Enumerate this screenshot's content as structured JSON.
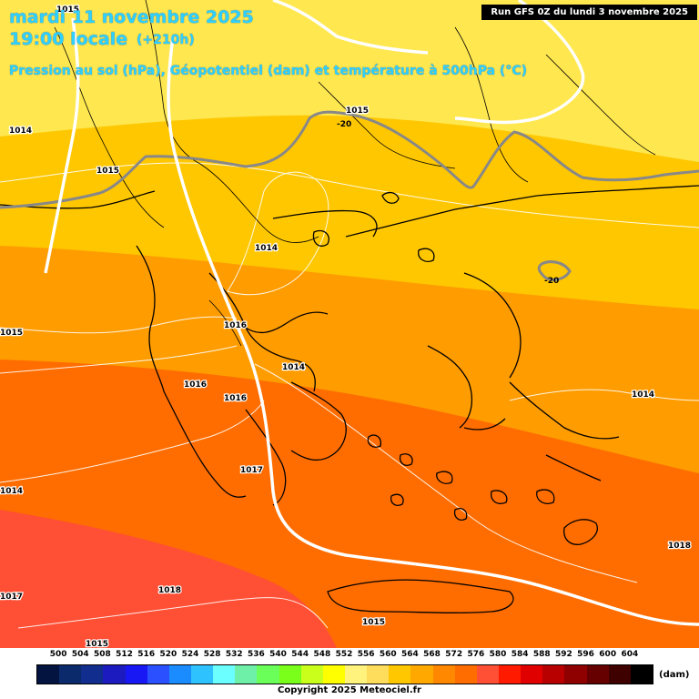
{
  "header": {
    "date": "mardi 11 novembre 2025",
    "time": "19:00 locale",
    "step": "(+210h)",
    "variables": "Pression au sol (hPa), Géopotentiel (dam) et température à 500hPa (°C)",
    "run": "Run GFS 0Z du lundi 3 novembre 2025"
  },
  "map": {
    "geopotential_bands_dam": [
      {
        "band": "564-568",
        "color": "#ffe74f"
      },
      {
        "band": "568-572",
        "color": "#ffc700"
      },
      {
        "band": "572-576",
        "color": "#ff9c00"
      },
      {
        "band": "576-580",
        "color": "#ff6d00"
      },
      {
        "band": "580-584",
        "color": "#ff4f35"
      }
    ],
    "pressure_labels": [
      "1015",
      "1014",
      "1015",
      "1015",
      "1014",
      "1015",
      "1016",
      "1016",
      "1014",
      "1016",
      "1014",
      "1017",
      "1014",
      "1018",
      "1017",
      "1018",
      "1015",
      "1015"
    ],
    "temperature_labels": [
      "-20",
      "-20"
    ]
  },
  "legend": {
    "ticks": [
      "500",
      "504",
      "508",
      "512",
      "516",
      "520",
      "524",
      "528",
      "532",
      "536",
      "540",
      "544",
      "548",
      "552",
      "556",
      "560",
      "564",
      "568",
      "572",
      "576",
      "580",
      "584",
      "588",
      "592",
      "596",
      "600",
      "604"
    ],
    "colors": [
      "#041440",
      "#0b2a6b",
      "#112d8e",
      "#1b1bbf",
      "#1818f5",
      "#2a50ff",
      "#1a8cff",
      "#2ec2ff",
      "#6bffff",
      "#6ff0a8",
      "#6bff5a",
      "#7aff1a",
      "#c9ff1a",
      "#ffff00",
      "#fff37d",
      "#ffdd5c",
      "#ffc700",
      "#ffa800",
      "#ff8800",
      "#ff6d00",
      "#ff4f35",
      "#ff1a00",
      "#e00000",
      "#b80000",
      "#8f0000",
      "#660000",
      "#3f0000",
      "#000000"
    ],
    "unit": "(dam)",
    "copyright": "Copyright 2025 Meteociel.fr"
  }
}
